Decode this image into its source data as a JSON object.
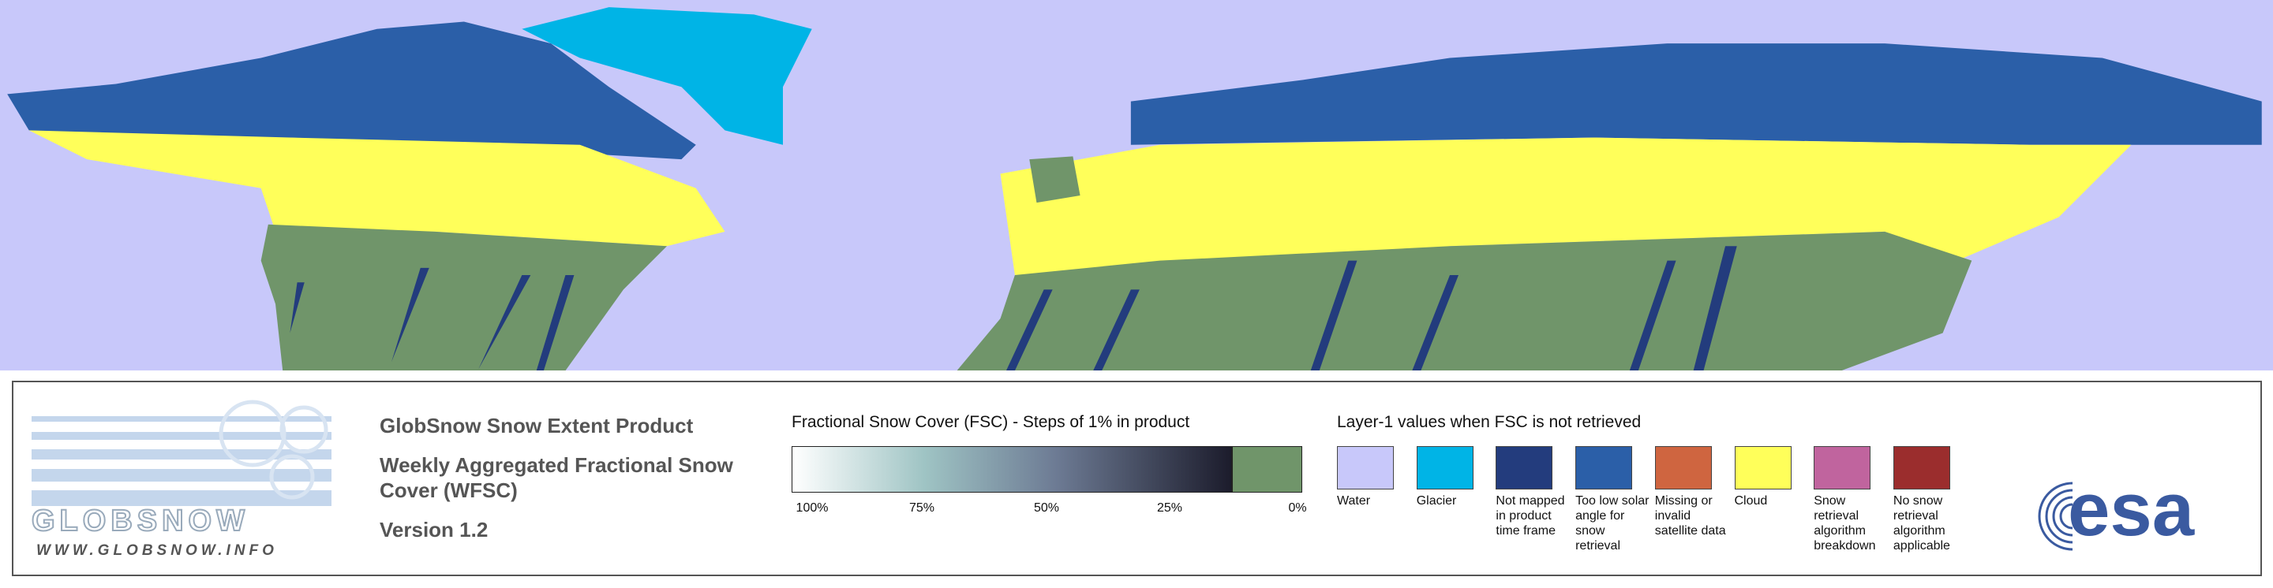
{
  "logo": {
    "name": "GLOBSNOW",
    "url": "WWW.GLOBSNOW.INFO"
  },
  "product": {
    "title": "GlobSnow Snow Extent Product",
    "subtitle": "Weekly Aggregated Fractional Snow Cover (WFSC)",
    "version": "Version 1.2"
  },
  "fsc_legend": {
    "title": "Fractional Snow Cover (FSC) - Steps of 1% in product",
    "ticks": [
      "100%",
      "75%",
      "50%",
      "25%",
      "0%"
    ]
  },
  "layer1_legend": {
    "title": "Layer-1 values when FSC is not retrieved",
    "classes": [
      {
        "label": "Water",
        "color": "#c8c8fa"
      },
      {
        "label": "Glacier",
        "color": "#00b4e6"
      },
      {
        "label": "Not mapped in product time frame",
        "color": "#233c7d"
      },
      {
        "label": "Too low solar angle for snow retrieval",
        "color": "#2b5fa8"
      },
      {
        "label": "Missing or invalid satellite data",
        "color": "#cf6540"
      },
      {
        "label": "Cloud",
        "color": "#ffff5a"
      },
      {
        "label": "Snow retrieval algorithm breakdown",
        "color": "#c0649e"
      },
      {
        "label": "No snow retrieval algorithm applicable",
        "color": "#9b2d2d"
      }
    ]
  },
  "esa": "esa"
}
